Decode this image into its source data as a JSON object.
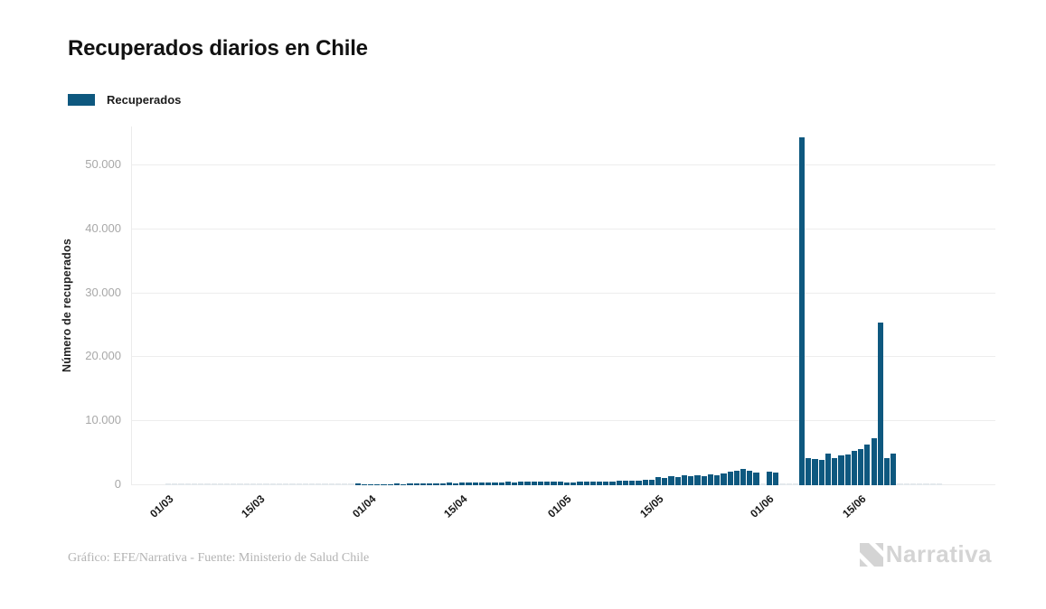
{
  "title": "Recuperados diarios en Chile",
  "legend": {
    "label": "Recuperados",
    "color": "#0e587f"
  },
  "footer": {
    "credit": "Gráfico: EFE/Narrativa - Fuente: Ministerio de Salud Chile"
  },
  "logo": {
    "text": "Narrativa",
    "color": "#d4d4d4"
  },
  "chart_data": {
    "type": "bar",
    "title": "Recuperados diarios en Chile",
    "series_name": "Recuperados",
    "xlabel": "",
    "ylabel": "Número de recuperados",
    "ylim": [
      0,
      56000
    ],
    "grid": true,
    "legend_position": "top-left",
    "bar_color": "#0e587f",
    "zero_bar_color": "#e3e8ec",
    "grid_color": "#ededed",
    "x_start": "01/03",
    "x_end": "27/06",
    "y_ticks": [
      {
        "value": 0,
        "label": "0"
      },
      {
        "value": 10000,
        "label": "10.000"
      },
      {
        "value": 20000,
        "label": "20.000"
      },
      {
        "value": 30000,
        "label": "30.000"
      },
      {
        "value": 40000,
        "label": "40.000"
      },
      {
        "value": 50000,
        "label": "50.000"
      }
    ],
    "x_ticks": [
      {
        "index": 0,
        "label": "01/03"
      },
      {
        "index": 14,
        "label": "15/03"
      },
      {
        "index": 31,
        "label": "01/04"
      },
      {
        "index": 45,
        "label": "15/04"
      },
      {
        "index": 61,
        "label": "01/05"
      },
      {
        "index": 75,
        "label": "15/05"
      },
      {
        "index": 92,
        "label": "01/06"
      },
      {
        "index": 106,
        "label": "15/06"
      }
    ],
    "values": [
      0,
      0,
      0,
      0,
      0,
      0,
      0,
      0,
      0,
      0,
      0,
      0,
      0,
      0,
      0,
      0,
      0,
      0,
      0,
      0,
      0,
      0,
      0,
      0,
      0,
      0,
      0,
      0,
      0,
      350,
      160,
      140,
      180,
      160,
      200,
      230,
      210,
      250,
      280,
      260,
      300,
      330,
      310,
      360,
      340,
      390,
      420,
      400,
      450,
      430,
      480,
      460,
      510,
      490,
      540,
      520,
      560,
      540,
      590,
      570,
      610,
      480,
      440,
      520,
      560,
      500,
      590,
      630,
      570,
      660,
      700,
      640,
      730,
      780,
      850,
      1300,
      1150,
      1400,
      1250,
      1500,
      1350,
      1600,
      1450,
      1750,
      1550,
      1900,
      2100,
      2300,
      2500,
      2260,
      1930,
      0,
      2120,
      1980,
      0,
      0,
      0,
      54400,
      4240,
      4150,
      3950,
      4890,
      4280,
      4600,
      4840,
      5310,
      5690,
      6390,
      7330,
      25400,
      4180,
      4980,
      0,
      0,
      0,
      0,
      0,
      0,
      0
    ]
  }
}
